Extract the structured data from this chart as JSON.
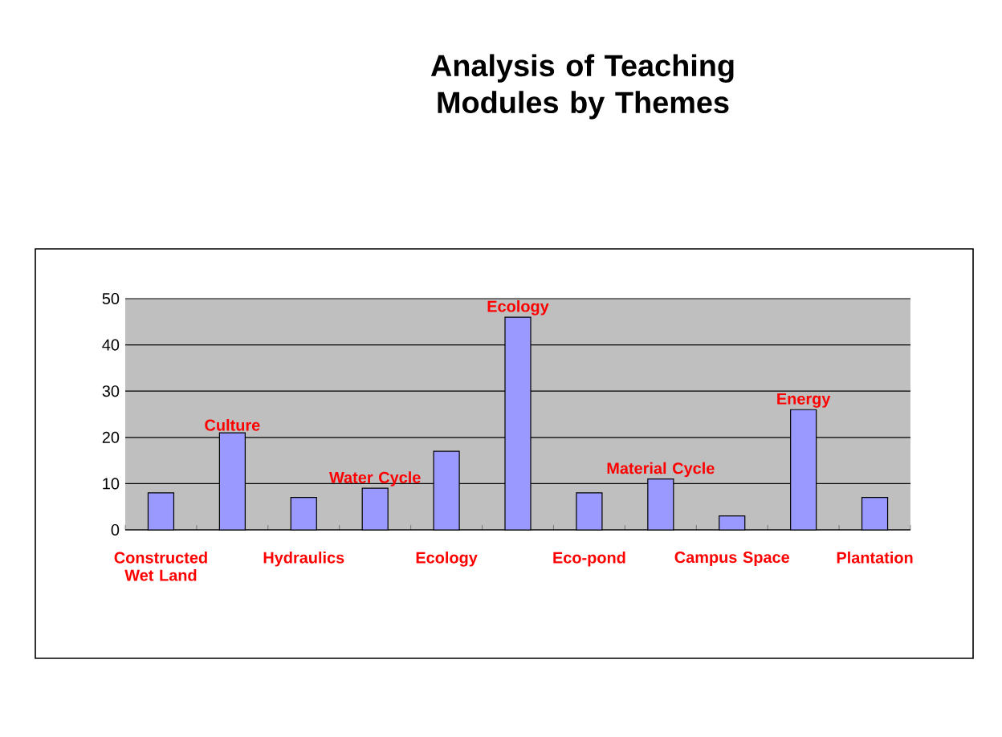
{
  "chart_data": {
    "type": "bar",
    "title": "Analysis of Teaching Modules by Themes",
    "categories": [
      "Constructed Wet Land",
      "Culture",
      "Hydraulics",
      "Water Cycle",
      "Ecology",
      "Ecology",
      "Eco-pond",
      "Material Cycle",
      "Campus Space",
      "Energy",
      "Plantation"
    ],
    "values": [
      8,
      21,
      7,
      9,
      17,
      46,
      8,
      11,
      3,
      26,
      7
    ],
    "color": "#9999ff",
    "ylim": [
      0,
      50
    ],
    "yticks": [
      0,
      10,
      20,
      30,
      40,
      50
    ],
    "grid": "y"
  }
}
